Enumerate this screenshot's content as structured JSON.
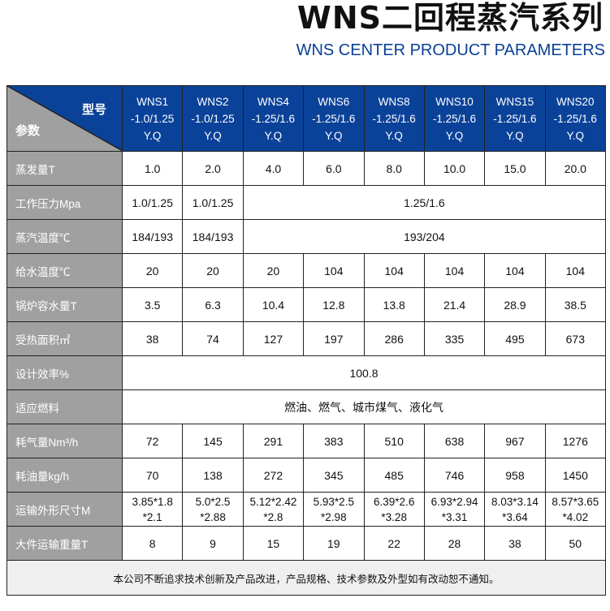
{
  "title": "WNS二回程蒸汽系列",
  "subtitle": "WNS CENTER PRODUCT PARAMETERS",
  "corner": {
    "top": "型号",
    "bottom": "参数"
  },
  "models": [
    [
      "WNS1",
      "-1.0/1.25",
      "Y.Q"
    ],
    [
      "WNS2",
      "-1.0/1.25",
      "Y.Q"
    ],
    [
      "WNS4",
      "-1.25/1.6",
      "Y.Q"
    ],
    [
      "WNS6",
      "-1.25/1.6",
      "Y.Q"
    ],
    [
      "WNS8",
      "-1.25/1.6",
      "Y.Q"
    ],
    [
      "WNS10",
      "-1.25/1.6",
      "Y.Q"
    ],
    [
      "WNS15",
      "-1.25/1.6",
      "Y.Q"
    ],
    [
      "WNS20",
      "-1.25/1.6",
      "Y.Q"
    ]
  ],
  "rows": [
    {
      "label": "蒸发量T",
      "cells": [
        [
          "1.0",
          1
        ],
        [
          "2.0",
          1
        ],
        [
          "4.0",
          1
        ],
        [
          "6.0",
          1
        ],
        [
          "8.0",
          1
        ],
        [
          "10.0",
          1
        ],
        [
          "15.0",
          1
        ],
        [
          "20.0",
          1
        ]
      ]
    },
    {
      "label": "工作压力Mpa",
      "cells": [
        [
          "1.0/1.25",
          1
        ],
        [
          "1.0/1.25",
          1
        ],
        [
          "1.25/1.6",
          6
        ]
      ]
    },
    {
      "label": "蒸汽温度℃",
      "cells": [
        [
          "184/193",
          1
        ],
        [
          "184/193",
          1
        ],
        [
          "193/204",
          6
        ]
      ]
    },
    {
      "label": "给水温度℃",
      "cells": [
        [
          "20",
          1
        ],
        [
          "20",
          1
        ],
        [
          "20",
          1
        ],
        [
          "104",
          1
        ],
        [
          "104",
          1
        ],
        [
          "104",
          1
        ],
        [
          "104",
          1
        ],
        [
          "104",
          1
        ]
      ]
    },
    {
      "label": "锅炉容水量T",
      "cells": [
        [
          "3.5",
          1
        ],
        [
          "6.3",
          1
        ],
        [
          "10.4",
          1
        ],
        [
          "12.8",
          1
        ],
        [
          "13.8",
          1
        ],
        [
          "21.4",
          1
        ],
        [
          "28.9",
          1
        ],
        [
          "38.5",
          1
        ]
      ]
    },
    {
      "label": "受热面积㎡",
      "cells": [
        [
          "38",
          1
        ],
        [
          "74",
          1
        ],
        [
          "127",
          1
        ],
        [
          "197",
          1
        ],
        [
          "286",
          1
        ],
        [
          "335",
          1
        ],
        [
          "495",
          1
        ],
        [
          "673",
          1
        ]
      ]
    },
    {
      "label": "设计效率%",
      "cells": [
        [
          "100.8",
          8
        ]
      ]
    },
    {
      "label": "适应燃料",
      "cells": [
        [
          "燃油、燃气、城市煤气、液化气",
          8
        ]
      ]
    },
    {
      "label": "耗气量Nm³/h",
      "cells": [
        [
          "72",
          1
        ],
        [
          "145",
          1
        ],
        [
          "291",
          1
        ],
        [
          "383",
          1
        ],
        [
          "510",
          1
        ],
        [
          "638",
          1
        ],
        [
          "967",
          1
        ],
        [
          "1276",
          1
        ]
      ]
    },
    {
      "label": "耗油量kg/h",
      "cells": [
        [
          "70",
          1
        ],
        [
          "138",
          1
        ],
        [
          "272",
          1
        ],
        [
          "345",
          1
        ],
        [
          "485",
          1
        ],
        [
          "746",
          1
        ],
        [
          "958",
          1
        ],
        [
          "1450",
          1
        ]
      ]
    },
    {
      "label": "运输外形尺寸M",
      "cells": [
        [
          "3.85*1.8\n*2.1",
          1
        ],
        [
          "5.0*2.5\n*2.88",
          1
        ],
        [
          "5.12*2.42\n*2.8",
          1
        ],
        [
          "5.93*2.5\n*2.98",
          1
        ],
        [
          "6.39*2.6\n*3.28",
          1
        ],
        [
          "6.93*2.94\n*3.31",
          1
        ],
        [
          "8.03*3.14\n*3.64",
          1
        ],
        [
          "8.57*3.65\n*4.02",
          1
        ]
      ]
    },
    {
      "label": "大件运输重量T",
      "cells": [
        [
          "8",
          1
        ],
        [
          "9",
          1
        ],
        [
          "15",
          1
        ],
        [
          "19",
          1
        ],
        [
          "22",
          1
        ],
        [
          "28",
          1
        ],
        [
          "38",
          1
        ],
        [
          "50",
          1
        ]
      ]
    }
  ],
  "footer": "本公司不断追求技术创新及产品改进，产品规格、技术参数及外型如有改动恕不通知。",
  "colors": {
    "header": "#0b4299",
    "label": "#a0a0a0",
    "footer": "#efefef"
  }
}
